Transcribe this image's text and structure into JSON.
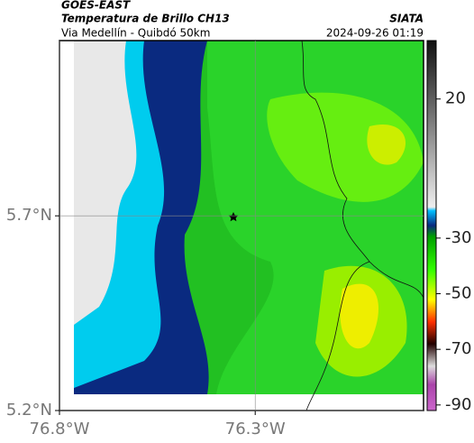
{
  "header": {
    "source": "GOES-EAST",
    "title": "Temperatura de Brillo CH13",
    "org": "SIATA",
    "subtitle": "Via Medellín - Quibdó 50km",
    "timestamp": "2024-09-26 01:19"
  },
  "map": {
    "xlim": [
      -76.8,
      -75.87
    ],
    "ylim": [
      5.2,
      6.15
    ],
    "xticks": [
      {
        "value": -76.8,
        "label": "76.8°W"
      },
      {
        "value": -76.3,
        "label": "76.3°W"
      }
    ],
    "yticks": [
      {
        "value": 5.2,
        "label": "5.2°N"
      },
      {
        "value": 5.7,
        "label": "5.7°N"
      }
    ],
    "grid": true
  },
  "colorbar": {
    "clim": [
      -92,
      41
    ],
    "ticks": [
      20,
      -30,
      -50,
      -70,
      -90
    ]
  }
}
